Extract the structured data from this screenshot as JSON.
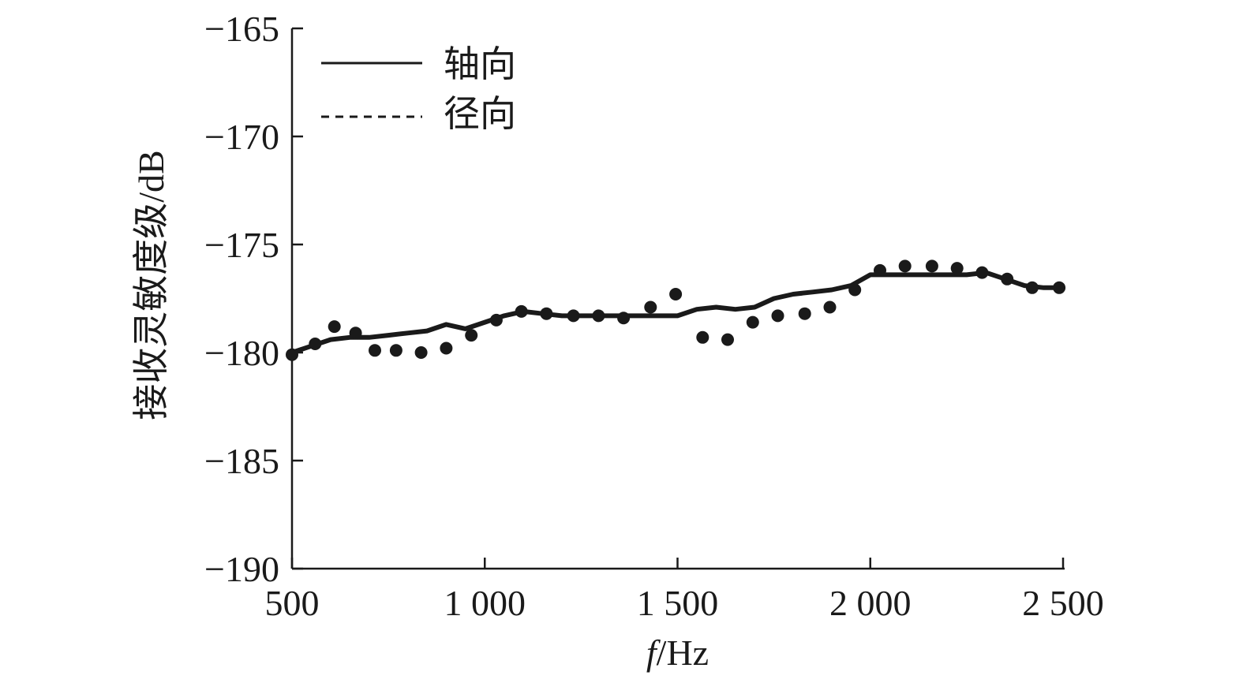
{
  "chart_data": {
    "type": "line",
    "xlabel_italic": "f",
    "xlabel_rest": "/Hz",
    "ylabel": "接收灵敏度级/dB",
    "xlim": [
      500,
      2500
    ],
    "ylim": [
      -190,
      -165
    ],
    "x_ticks": [
      500,
      1000,
      1500,
      2000,
      2500
    ],
    "x_tick_labels": [
      "500",
      "1 000",
      "1 500",
      "2 000",
      "2 500"
    ],
    "y_ticks": [
      -190,
      -185,
      -180,
      -175,
      -170,
      -165
    ],
    "y_tick_labels": [
      "−190",
      "−185",
      "−180",
      "−175",
      "−170",
      "−165"
    ],
    "grid": false,
    "legend_position": "top-left",
    "series": [
      {
        "name": "轴向",
        "style": "solid",
        "x": [
          500,
          550,
          600,
          650,
          700,
          750,
          800,
          850,
          900,
          950,
          1000,
          1050,
          1100,
          1150,
          1200,
          1250,
          1300,
          1350,
          1400,
          1450,
          1500,
          1550,
          1600,
          1650,
          1700,
          1750,
          1800,
          1850,
          1900,
          1950,
          2000,
          2050,
          2100,
          2150,
          2200,
          2250,
          2300,
          2350,
          2400,
          2450,
          2500
        ],
        "y": [
          -180.0,
          -179.7,
          -179.4,
          -179.3,
          -179.3,
          -179.2,
          -179.1,
          -179.0,
          -178.7,
          -178.9,
          -178.6,
          -178.3,
          -178.1,
          -178.2,
          -178.3,
          -178.3,
          -178.3,
          -178.3,
          -178.3,
          -178.3,
          -178.3,
          -178.0,
          -177.9,
          -178.0,
          -177.9,
          -177.5,
          -177.3,
          -177.2,
          -177.1,
          -176.9,
          -176.4,
          -176.4,
          -176.4,
          -176.4,
          -176.4,
          -176.4,
          -176.3,
          -176.6,
          -176.9,
          -177.0,
          -177.0
        ]
      },
      {
        "name": "径向",
        "style": "dotted",
        "x": [
          500,
          560,
          610,
          665,
          715,
          770,
          835,
          900,
          965,
          1030,
          1095,
          1160,
          1230,
          1295,
          1360,
          1430,
          1495,
          1565,
          1630,
          1695,
          1760,
          1830,
          1895,
          1960,
          2025,
          2090,
          2160,
          2225,
          2290,
          2355,
          2420,
          2490
        ],
        "y": [
          -180.1,
          -179.6,
          -178.8,
          -179.1,
          -179.9,
          -179.9,
          -180.0,
          -179.8,
          -179.2,
          -178.5,
          -178.1,
          -178.2,
          -178.3,
          -178.3,
          -178.4,
          -177.9,
          -177.3,
          -179.3,
          -179.4,
          -178.6,
          -178.3,
          -178.2,
          -177.9,
          -177.1,
          -176.2,
          -176.0,
          -176.0,
          -176.1,
          -176.3,
          -176.6,
          -177.0,
          -177.0
        ]
      }
    ]
  }
}
